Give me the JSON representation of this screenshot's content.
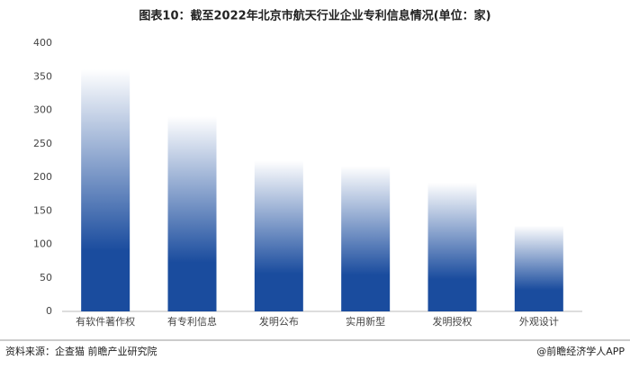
{
  "chart_data": {
    "type": "bar",
    "title": "图表10：截至2022年北京市航天行业企业专利信息情况(单位：家)",
    "categories": [
      "有软件著作权",
      "有专利信息",
      "发明公布",
      "实用新型",
      "发明授权",
      "外观设计"
    ],
    "values": [
      361,
      291,
      225,
      217,
      192,
      128
    ],
    "color": "#1a4c9e",
    "ylim": [
      0,
      400
    ],
    "yticks": [
      0,
      50,
      100,
      150,
      200,
      250,
      300,
      350,
      400
    ],
    "grid": false,
    "source": "资料来源：企查猫 前瞻产业研究院",
    "credit": "@前瞻经济学人APP"
  }
}
